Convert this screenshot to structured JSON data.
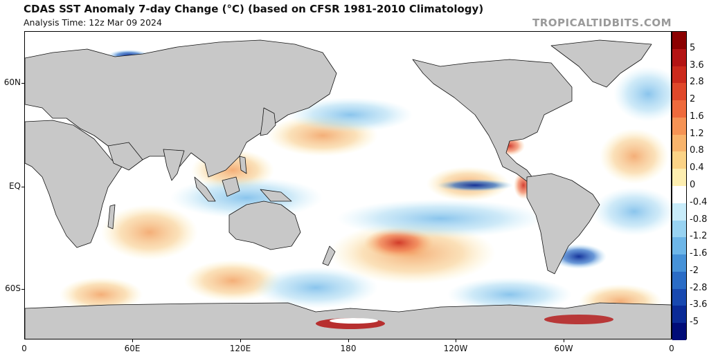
{
  "header": {
    "title": "CDAS SST Anomaly 7-day Change (°C) (based on CFSR 1981-2010 Climatology)",
    "analysis_time": "Analysis Time: 12z Mar 09 2024",
    "watermark": "TROPICALTIDBITS.COM"
  },
  "axes": {
    "y_labels": [
      "60N",
      "EQ",
      "60S"
    ],
    "x_labels": [
      "0",
      "60E",
      "120E",
      "180",
      "120W",
      "60W",
      "0"
    ]
  },
  "colorbar": {
    "labels": [
      "5",
      "3.6",
      "2.8",
      "2",
      "1.6",
      "1.2",
      "0.8",
      "0.4",
      "0",
      "-0.4",
      "-0.8",
      "-1.2",
      "-1.6",
      "-2",
      "-2.8",
      "-3.6",
      "-5"
    ],
    "colors": [
      "#8b0000",
      "#b41414",
      "#cc2a1c",
      "#e0482a",
      "#ef6a3c",
      "#f59355",
      "#f8b46c",
      "#fbd386",
      "#fdeeb0",
      "#ffffff",
      "#c8ecfa",
      "#98d3f2",
      "#6db6e8",
      "#4692d8",
      "#2a6cc6",
      "#1849b0",
      "#0a2a96",
      "#000c78"
    ]
  },
  "colors": {
    "land": "#c8c8c8",
    "coast": "#111111",
    "ocean_neutral": "#ffffff",
    "warm": "#f5c98a",
    "cool": "#9fd4f0"
  }
}
